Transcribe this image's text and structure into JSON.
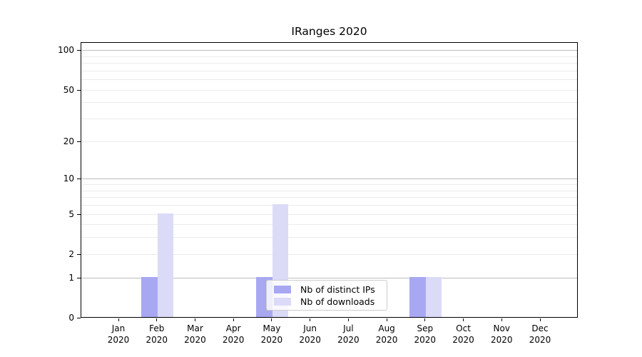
{
  "figure": {
    "title": "IRanges 2020"
  },
  "chart_data": {
    "type": "bar",
    "title": "IRanges 2020",
    "categories": [
      "Jan",
      "Feb",
      "Mar",
      "Apr",
      "May",
      "Jun",
      "Jul",
      "Aug",
      "Sep",
      "Oct",
      "Nov",
      "Dec"
    ],
    "category_year": "2020",
    "series": [
      {
        "name": "Nb of distinct IPs",
        "color": "#a8a8f2",
        "values": [
          0,
          1,
          0,
          0,
          1,
          0,
          0,
          0,
          1,
          0,
          0,
          0
        ]
      },
      {
        "name": "Nb of downloads",
        "color": "#dbdbf8",
        "values": [
          0,
          5,
          0,
          0,
          6,
          0,
          0,
          0,
          1,
          0,
          0,
          0
        ]
      }
    ],
    "xlabel": "",
    "ylabel": "",
    "y_scale": "log1p",
    "ylim": [
      0,
      115
    ],
    "y_ticks": [
      0,
      1,
      2,
      5,
      10,
      20,
      50,
      100
    ],
    "y_major_gridlines": [
      1,
      10,
      100
    ],
    "y_minor_gridlines": [
      2,
      3,
      4,
      5,
      6,
      7,
      8,
      9,
      20,
      30,
      40,
      50,
      60,
      70,
      80,
      90
    ],
    "grid": "both",
    "legend_position": "lower center"
  },
  "colors": {
    "bar_distinct_ips": "#a8a8f2",
    "bar_downloads": "#dbdbf8",
    "grid_major": "#bdbdbd",
    "grid_minor": "#ebebeb",
    "axis": "#000000",
    "background": "#ffffff"
  }
}
